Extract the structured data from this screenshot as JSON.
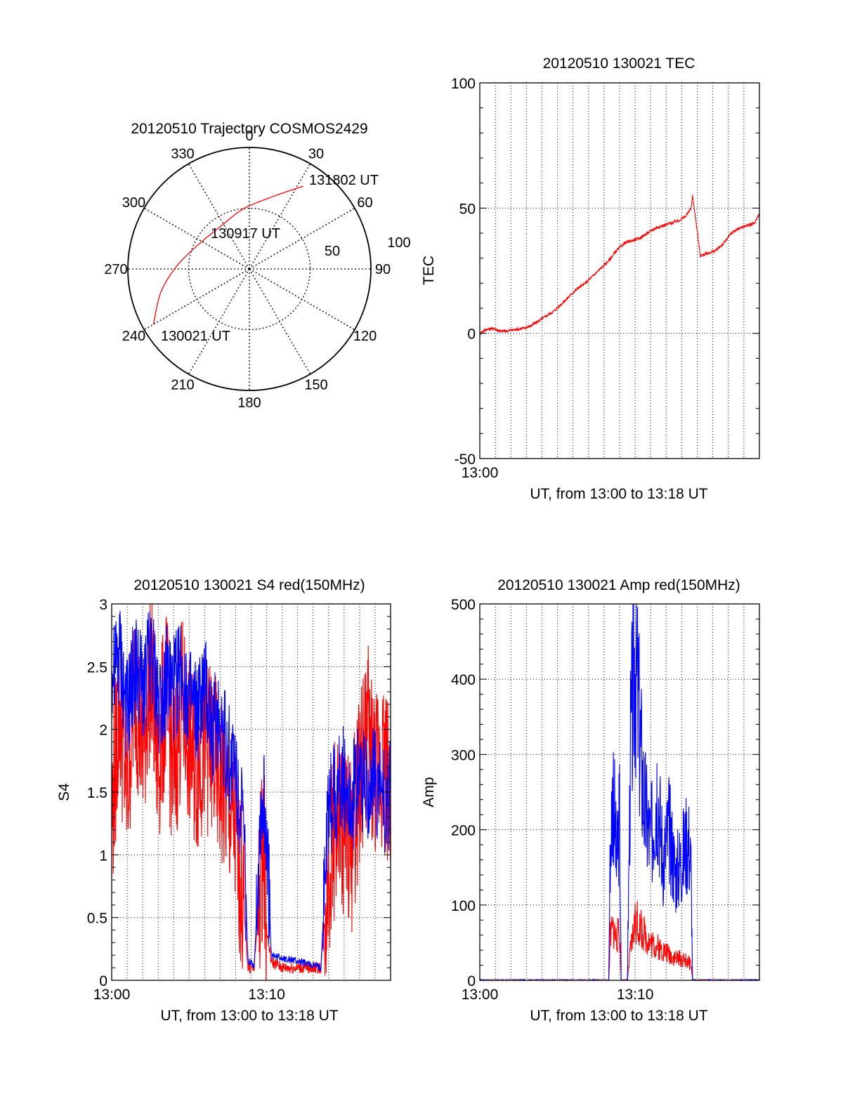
{
  "chart_data": [
    {
      "type": "polar",
      "title": "20120510 Trajectory COSMOS2429",
      "angle_labels": [
        "0",
        "30",
        "60",
        "90",
        "120",
        "150",
        "180",
        "210",
        "240",
        "270",
        "300",
        "330"
      ],
      "radial_labels": [
        "50",
        "100"
      ],
      "series": [
        {
          "color": "#ff0000",
          "points": [
            {
              "az": 240,
              "el": 8
            },
            {
              "az": 255,
              "el": 22
            },
            {
              "az": 272,
              "el": 36
            },
            {
              "az": 295,
              "el": 48
            },
            {
              "az": 325,
              "el": 52
            },
            {
              "az": 355,
              "el": 45
            },
            {
              "az": 20,
              "el": 32
            },
            {
              "az": 33,
              "el": 17
            }
          ]
        }
      ],
      "annotations": [
        {
          "text": "131802 UT",
          "az": 34,
          "el": 14
        },
        {
          "text": "130917 UT",
          "az": 5,
          "el": 58
        },
        {
          "text": "130021 UT",
          "az": 210,
          "el": 22
        }
      ]
    },
    {
      "type": "line",
      "title": "20120510 130021 TEC",
      "xlabel": "UT, from 13:00 to 13:18 UT",
      "ylabel": "TEC",
      "xlim": [
        0,
        18
      ],
      "ylim": [
        -50,
        100
      ],
      "yticks": [
        -50,
        0,
        50,
        100
      ],
      "xticks": [
        {
          "v": 0,
          "label": "13:00"
        }
      ],
      "grid": true,
      "series": [
        {
          "color": "#ff0000",
          "x": [
            0,
            0.4,
            0.9,
            1.3,
            1.8,
            2.3,
            2.8,
            3.3,
            3.8,
            4.3,
            4.8,
            5.3,
            5.8,
            6.3,
            6.8,
            7.3,
            7.8,
            8.3,
            8.8,
            9.3,
            9.8,
            10.3,
            10.8,
            11.3,
            11.8,
            12.3,
            12.8,
            13.3,
            13.6,
            13.7,
            14.2,
            14.7,
            15.2,
            15.7,
            16.2,
            16.7,
            17.2,
            17.7,
            18
          ],
          "y": [
            0,
            1.5,
            2,
            0.8,
            1,
            1.5,
            2,
            3,
            5,
            7,
            9,
            12,
            15,
            18,
            20,
            23,
            26,
            29,
            33,
            36,
            37,
            38,
            40,
            42,
            43,
            44,
            45,
            47,
            50,
            55,
            31,
            32,
            33,
            36,
            40,
            42,
            43,
            44,
            48
          ]
        }
      ]
    },
    {
      "type": "line",
      "title": "20120510 130021 S4 red(150MHz)",
      "xlabel": "UT, from 13:00 to 13:18 UT",
      "ylabel": "S4",
      "xlim": [
        0,
        18
      ],
      "ylim": [
        0,
        3
      ],
      "yticks": [
        0,
        0.5,
        1,
        1.5,
        2,
        2.5,
        3
      ],
      "xticks": [
        {
          "v": 0,
          "label": "13:00"
        },
        {
          "v": 10,
          "label": "13:10"
        }
      ],
      "grid": true,
      "series": [
        {
          "color": "#ff0000",
          "x": [
            0,
            0.5,
            1,
            1.5,
            2,
            2.5,
            3,
            3.5,
            4,
            4.5,
            5,
            5.5,
            6,
            6.5,
            7,
            7.5,
            8,
            8.5,
            8.8,
            9.2,
            9.6,
            9.8,
            10,
            10.3,
            11,
            12,
            13,
            13.5,
            14,
            14.5,
            15,
            15.5,
            16,
            16.5,
            17,
            17.5,
            18
          ],
          "y": [
            1.3,
            2.2,
            1.5,
            2.4,
            1.8,
            2.5,
            1.7,
            2.3,
            1.6,
            2.2,
            1.9,
            1.7,
            1.9,
            1.8,
            1.6,
            1.4,
            1.2,
            0.6,
            0.1,
            0.1,
            0.8,
            1.2,
            0.4,
            0.15,
            0.1,
            0.1,
            0.1,
            0.1,
            0.9,
            1.3,
            1.2,
            1.1,
            1.6,
            2.0,
            1.6,
            1.8,
            1.5
          ]
        },
        {
          "color": "#0000ff",
          "x": [
            0,
            0.5,
            1,
            1.5,
            2,
            2.5,
            3,
            3.5,
            4,
            4.5,
            5,
            5.5,
            6,
            6.5,
            7,
            7.5,
            8,
            8.5,
            8.8,
            9.2,
            9.6,
            9.8,
            10,
            10.3,
            11,
            12,
            13,
            13.5,
            14,
            14.5,
            15,
            15.5,
            16,
            16.5,
            17,
            17.5,
            18
          ],
          "y": [
            2.3,
            2.6,
            2.1,
            2.5,
            2.3,
            2.6,
            2.2,
            2.4,
            2.3,
            2.5,
            2.2,
            2.1,
            2.3,
            2.0,
            2.1,
            1.8,
            1.7,
            1.2,
            0.15,
            0.12,
            1.3,
            1.4,
            1.2,
            0.2,
            0.18,
            0.15,
            0.12,
            0.1,
            1.4,
            1.5,
            1.6,
            1.4,
            1.7,
            1.5,
            1.6,
            1.4,
            1.5
          ]
        }
      ]
    },
    {
      "type": "line",
      "title": "20120510 130021 Amp red(150MHz)",
      "xlabel": "UT, from 13:00 to 13:18 UT",
      "ylabel": "Amp",
      "xlim": [
        0,
        18
      ],
      "ylim": [
        0,
        500
      ],
      "yticks": [
        0,
        100,
        200,
        300,
        400,
        500
      ],
      "xticks": [
        {
          "v": 0,
          "label": "13:00"
        },
        {
          "v": 10,
          "label": "13:10"
        }
      ],
      "grid": true,
      "series": [
        {
          "color": "#ff0000",
          "x": [
            0,
            8.3,
            8.4,
            8.6,
            8.8,
            9.0,
            9.1,
            9.3,
            9.5,
            9.7,
            10.0,
            10.3,
            10.6,
            11.0,
            11.4,
            11.8,
            12.2,
            12.6,
            13.0,
            13.4,
            13.6,
            13.7,
            18
          ],
          "y": [
            0,
            0,
            60,
            70,
            55,
            65,
            0,
            0,
            0,
            40,
            80,
            70,
            60,
            50,
            45,
            40,
            35,
            30,
            28,
            25,
            20,
            0,
            0
          ]
        },
        {
          "color": "#0000ff",
          "x": [
            0,
            8.3,
            8.4,
            8.6,
            8.8,
            9.0,
            9.1,
            9.3,
            9.5,
            9.7,
            10.0,
            10.3,
            10.6,
            11.0,
            11.4,
            11.8,
            12.2,
            12.6,
            13.0,
            13.4,
            13.6,
            13.7,
            18
          ],
          "y": [
            0,
            0,
            180,
            260,
            150,
            220,
            0,
            0,
            0,
            300,
            440,
            320,
            230,
            180,
            260,
            160,
            200,
            140,
            160,
            190,
            150,
            0,
            0
          ]
        }
      ]
    }
  ]
}
